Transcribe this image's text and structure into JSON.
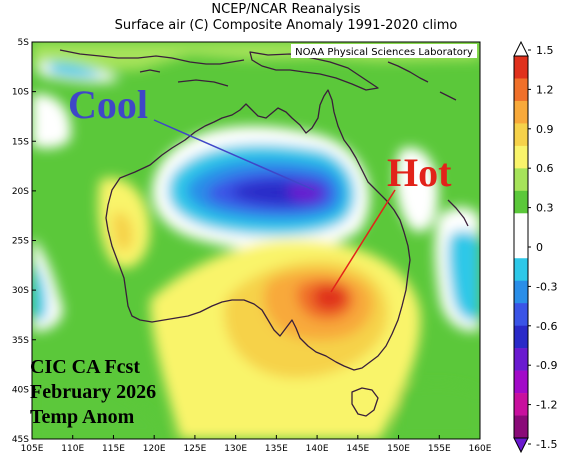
{
  "header": {
    "line1": "NCEP/NCAR Reanalysis",
    "line2": "Surface air (C) Composite Anomaly 1991-2020 climo"
  },
  "credit": "NOAA Physical Sciences Laboratory",
  "annotations": {
    "cool": "Cool",
    "hot": "Hot"
  },
  "caption": {
    "line1": "CIC CA Fcst",
    "line2": "February 2026",
    "line3": "Temp Anom"
  },
  "axes": {
    "lat_labels": [
      "5S",
      "10S",
      "15S",
      "20S",
      "25S",
      "30S",
      "35S",
      "40S",
      "45S"
    ],
    "lon_labels": [
      "105E",
      "110E",
      "115E",
      "120E",
      "125E",
      "130E",
      "135E",
      "140E",
      "145E",
      "150E",
      "155E",
      "160E"
    ]
  },
  "colorbar": {
    "labels": [
      "1.5",
      "1.2",
      "0.9",
      "0.6",
      "0.3",
      "0",
      "-0.3",
      "-0.6",
      "-0.9",
      "-1.2",
      "-1.5"
    ],
    "colors": [
      "#e0311c",
      "#f0702a",
      "#f8a93a",
      "#f6d24a",
      "#f9f46b",
      "#a6e35a",
      "#5bc83a",
      "#ffffff",
      "#ffffff",
      "#2ec8e8",
      "#2a8ee8",
      "#3a54e6",
      "#2a2ac8",
      "#6a1ad0",
      "#a20ac8",
      "#c8109e",
      "#8a0a78"
    ]
  },
  "colors": {
    "cool_anomaly": "#3f46c8",
    "hot_anomaly": "#e2231a",
    "coastline": "#3a1f3a"
  }
}
